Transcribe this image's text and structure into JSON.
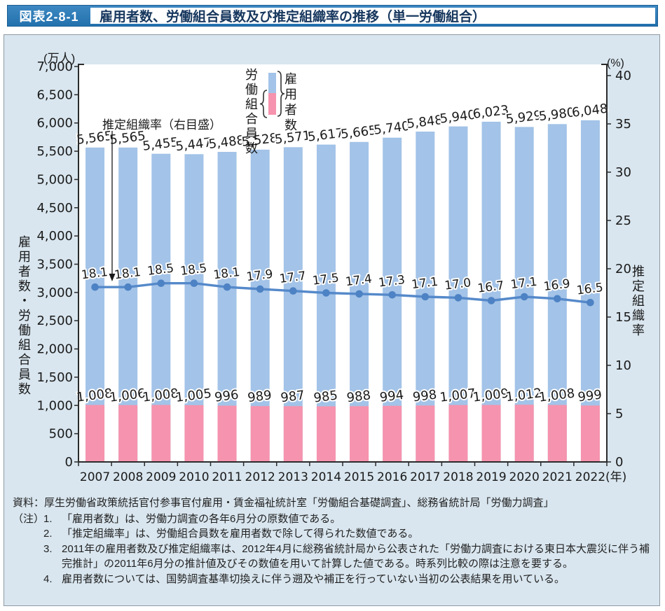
{
  "header": {
    "tag": "図表2-8-1",
    "title": "雇用者数、労働組合員数及び推定組織率の推移（単一労働組合）"
  },
  "chart_data": {
    "type": "bar+line combo",
    "categories": [
      "2007",
      "2008",
      "2009",
      "2010",
      "2011",
      "2012",
      "2013",
      "2014",
      "2015",
      "2016",
      "2017",
      "2018",
      "2019",
      "2020",
      "2021",
      "2022"
    ],
    "x_suffix": "(年)",
    "annotation": "推定組織率（右目盛）",
    "series": [
      {
        "name": "雇用者数",
        "type": "bar",
        "axis": "left",
        "color": "#a3c3e8",
        "values": [
          5565,
          5565,
          5455,
          5447,
          5488,
          5528,
          5571,
          5617,
          5665,
          5740,
          5848,
          5940,
          6023,
          5929,
          5980,
          6048
        ]
      },
      {
        "name": "労働組合員数",
        "type": "bar",
        "axis": "left",
        "color": "#f693ae",
        "values": [
          1008,
          1006,
          1008,
          1005,
          996,
          989,
          987,
          985,
          988,
          994,
          998,
          1007,
          1009,
          1012,
          1008,
          999
        ]
      },
      {
        "name": "推定組織率",
        "type": "line",
        "axis": "right",
        "color": "#5589ca",
        "marker_color": "#4d82c4",
        "values": [
          18.1,
          18.1,
          18.5,
          18.5,
          18.1,
          17.9,
          17.7,
          17.5,
          17.4,
          17.3,
          17.1,
          17.0,
          16.7,
          17.1,
          16.9,
          16.5
        ]
      }
    ],
    "left_axis": {
      "unit": "(万人)",
      "title": "雇用者数・労働組合員数",
      "min": 0,
      "max": 7000,
      "step": 500
    },
    "right_axis": {
      "unit": "(%)",
      "title": "推定組織率",
      "min": 0,
      "max": 40,
      "step": 5
    },
    "grid": false,
    "legend_position": "top-center-inside"
  },
  "notes": {
    "source": "資料：厚生労働省政策統括官付参事官付雇用・賃金福祉統計室「労働組合基礎調査」、総務省統計局「労働力調査」",
    "note_label": "（注）",
    "items": [
      {
        "num": "1.",
        "text": "「雇用者数」は、労働力調査の各年6月分の原数値である。"
      },
      {
        "num": "2.",
        "text": "「推定組織率」は、労働組合員数を雇用者数で除して得られた数値である。"
      },
      {
        "num": "3.",
        "text": "2011年の雇用者数及び推定組織率は、2012年4月に総務省統計局から公表された「労働力調査における東日本大震災に伴う補完推計」の2011年6月分の推計値及びその数値を用いて計算した値である。時系列比較の際は注意を要する。"
      },
      {
        "num": "4.",
        "text": "雇用者数については、国勢調査基準切換えに伴う遡及や補正を行っていない当初の公表結果を用いている。"
      }
    ]
  }
}
